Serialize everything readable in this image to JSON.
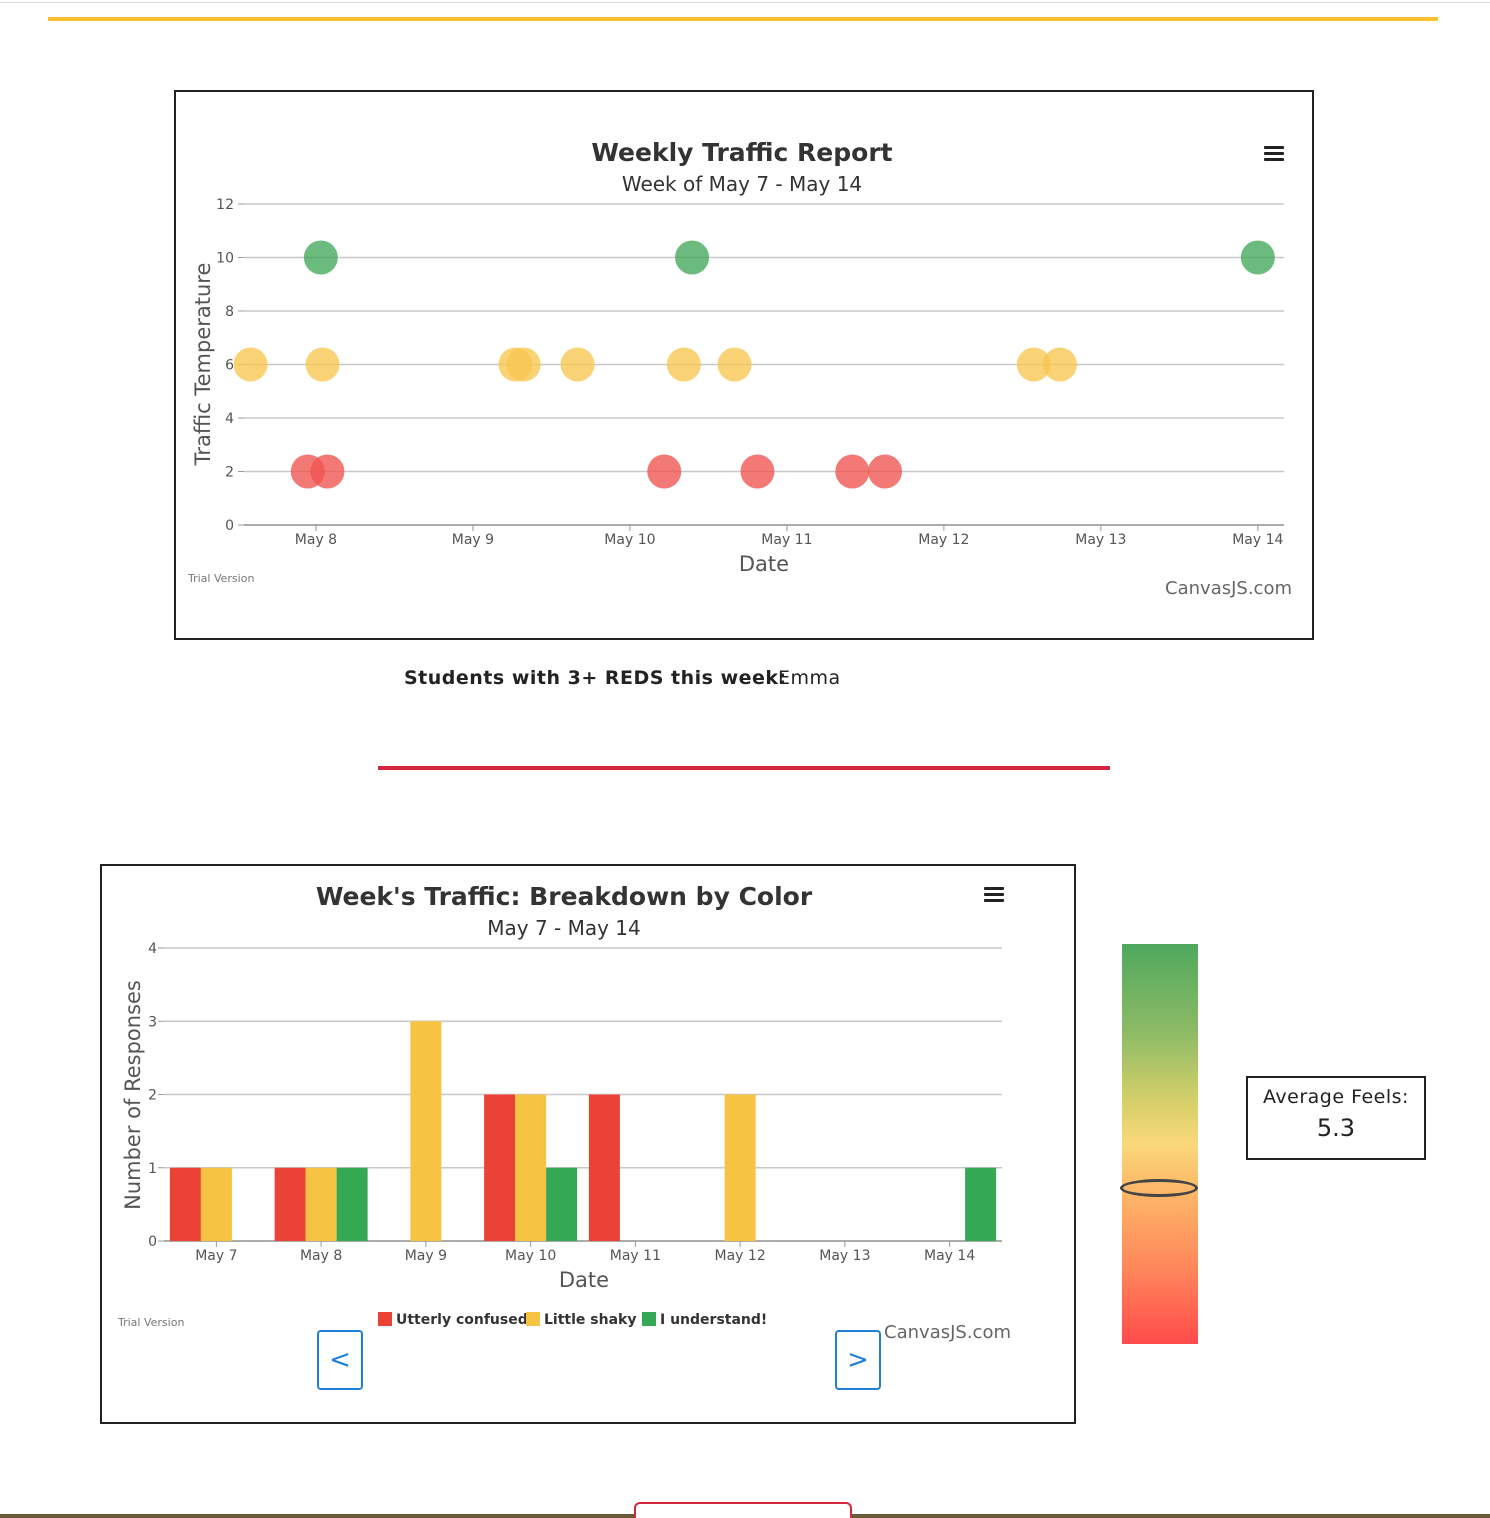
{
  "scatter": {
    "title": "Weekly Traffic Report",
    "subtitle": "Week of May 7 - May 14",
    "menu_icon": "hamburger-menu-icon",
    "trial": "Trial Version",
    "credit": "CanvasJS.com"
  },
  "reds": {
    "label": "Students with 3+ REDS this week:",
    "names": "Emma"
  },
  "bar": {
    "title": "Week's Traffic: Breakdown by Color",
    "subtitle": "May 7 - May 14",
    "menu_icon": "hamburger-menu-icon",
    "trial": "Trial Version",
    "credit": "CanvasJS.com",
    "prev_label": "<",
    "next_label": ">"
  },
  "gauge": {
    "label": "Average Feels:",
    "value": "5.3",
    "scale_min": 0,
    "scale_max": 10
  },
  "chart_data": [
    {
      "type": "scatter",
      "title": "Weekly Traffic Report",
      "subtitle": "Week of May 7 - May 14",
      "xlabel": "Date",
      "ylabel": "Traffic Temperature",
      "xlim": [
        "2018-05-07T13:00",
        "2018-05-14T04:00"
      ],
      "ylim": [
        0,
        12
      ],
      "yticks": [
        "0",
        "2",
        "4",
        "6",
        "8",
        "10",
        "12"
      ],
      "xticks": [
        "May 8",
        "May 9",
        "May 10",
        "May 11",
        "May 12",
        "May 13",
        "May 14"
      ],
      "grid": true,
      "points": [
        {
          "x": "2018-05-07T14:00",
          "y": 6,
          "color": "#f9c74f"
        },
        {
          "x": "2018-05-07T22:45",
          "y": 2,
          "color": "#ef5350"
        },
        {
          "x": "2018-05-08T00:45",
          "y": 10,
          "color": "#43a85a"
        },
        {
          "x": "2018-05-08T01:00",
          "y": 6,
          "color": "#f9c74f"
        },
        {
          "x": "2018-05-08T01:45",
          "y": 2,
          "color": "#ef5350"
        },
        {
          "x": "2018-05-09T06:30",
          "y": 6,
          "color": "#f9c74f"
        },
        {
          "x": "2018-05-09T07:45",
          "y": 6,
          "color": "#f9c74f"
        },
        {
          "x": "2018-05-09T16:00",
          "y": 6,
          "color": "#f9c74f"
        },
        {
          "x": "2018-05-10T05:15",
          "y": 2,
          "color": "#ef5350"
        },
        {
          "x": "2018-05-10T08:15",
          "y": 6,
          "color": "#f9c74f"
        },
        {
          "x": "2018-05-10T09:30",
          "y": 10,
          "color": "#43a85a"
        },
        {
          "x": "2018-05-10T16:00",
          "y": 6,
          "color": "#f9c74f"
        },
        {
          "x": "2018-05-10T19:30",
          "y": 2,
          "color": "#ef5350"
        },
        {
          "x": "2018-05-11T10:00",
          "y": 2,
          "color": "#ef5350"
        },
        {
          "x": "2018-05-11T15:00",
          "y": 2,
          "color": "#ef5350"
        },
        {
          "x": "2018-05-12T13:45",
          "y": 6,
          "color": "#f9c74f"
        },
        {
          "x": "2018-05-12T17:45",
          "y": 6,
          "color": "#f9c74f"
        },
        {
          "x": "2018-05-14T00:00",
          "y": 10,
          "color": "#43a85a"
        }
      ]
    },
    {
      "type": "bar",
      "title": "Week's Traffic: Breakdown by Color",
      "subtitle": "May 7 - May 14",
      "xlabel": "Date",
      "ylabel": "Number of Responses",
      "ylim": [
        0,
        4
      ],
      "yticks": [
        "0",
        "1",
        "2",
        "3",
        "4"
      ],
      "categories": [
        "May 7",
        "May 8",
        "May 9",
        "May 10",
        "May 11",
        "May 12",
        "May 13",
        "May 14"
      ],
      "grid": true,
      "legend_position": "bottom",
      "series": [
        {
          "name": "Utterly confused",
          "color": "#ea4335",
          "values": [
            1,
            1,
            0,
            2,
            2,
            0,
            0,
            0
          ]
        },
        {
          "name": "Little shaky",
          "color": "#f6c343",
          "values": [
            1,
            1,
            3,
            2,
            0,
            2,
            0,
            0
          ]
        },
        {
          "name": "I understand!",
          "color": "#34a853",
          "values": [
            0,
            1,
            0,
            1,
            0,
            0,
            0,
            1
          ]
        }
      ]
    }
  ]
}
